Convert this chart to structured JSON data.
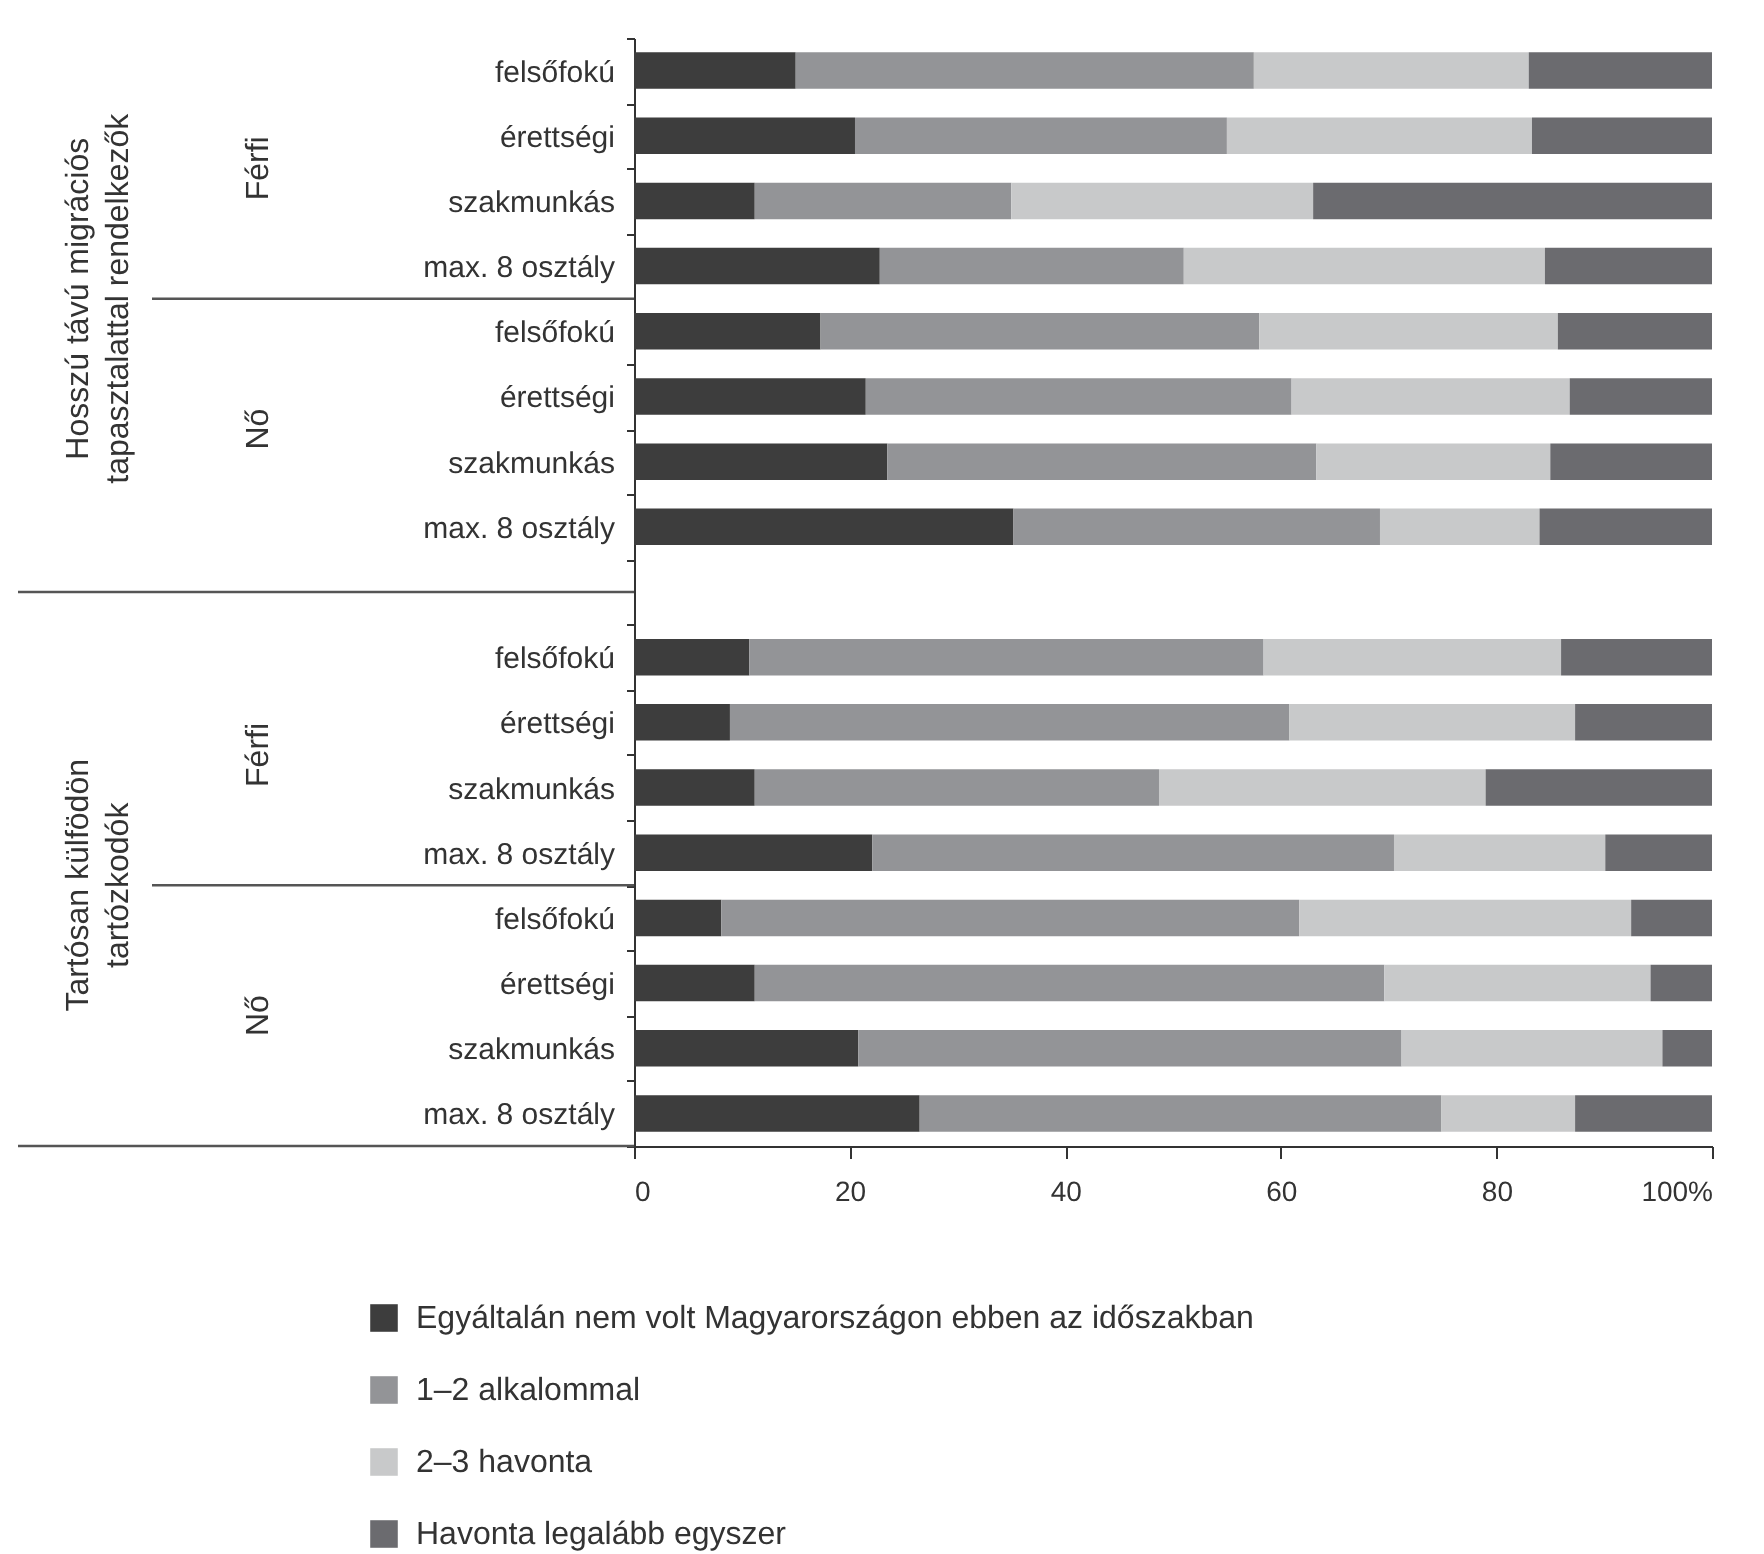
{
  "chart_data": {
    "type": "bar",
    "orientation": "horizontal",
    "stacked": true,
    "categories": [
      "felsőfokú",
      "érettségi",
      "szakmunkás",
      "max. 8 osztály",
      "felsőfokú",
      "érettségi",
      "szakmunkás",
      "max. 8 osztály",
      "felsőfokú",
      "érettségi",
      "szakmunkás",
      "max. 8 osztály",
      "felsőfokú",
      "érettségi",
      "szakmunkás",
      "max. 8 osztály"
    ],
    "series": [
      {
        "name": "Egyáltalán nem volt Magyarországon ebben az időszakban",
        "color": "#3d3d3d",
        "values": [
          15,
          20.5,
          11.2,
          22.8,
          17.3,
          21.5,
          23.5,
          35.2,
          10.7,
          8.9,
          11.2,
          22.1,
          8.1,
          11.2,
          20.8,
          26.5
        ]
      },
      {
        "name": "1–2 alkalommal",
        "color": "#939497",
        "values": [
          42.5,
          34.5,
          23.8,
          28.2,
          40.7,
          39.5,
          39.8,
          34,
          47.7,
          51.9,
          37.5,
          48.4,
          53.6,
          58.4,
          50.4,
          48.4
        ]
      },
      {
        "name": "2–3 havonta",
        "color": "#c8c9ca",
        "values": [
          25.5,
          28.3,
          28,
          33.5,
          27.7,
          25.8,
          21.7,
          14.8,
          27.6,
          26.5,
          30.3,
          19.6,
          30.8,
          24.7,
          24.2,
          12.4
        ]
      },
      {
        "name": "Havonta legalább egyszer",
        "color": "#6b6b6f",
        "values": [
          17,
          16.7,
          37,
          15.5,
          14.3,
          13.2,
          15,
          16,
          14,
          12.7,
          21,
          9.9,
          7.5,
          5.7,
          4.6,
          12.7
        ]
      }
    ],
    "xlim": [
      0,
      100
    ],
    "xticks": [
      0,
      20,
      40,
      60,
      80,
      {
        "value": 100,
        "label": "100%"
      }
    ],
    "legend": "bottom",
    "grid": false,
    "annotations": [
      "Hosszú távú migrációs\ntapasztalattal rendelkezők",
      "Férfi",
      "Nő",
      "Tartósan külfödön\ntartózkodók",
      "Férfi",
      "Nő"
    ]
  }
}
